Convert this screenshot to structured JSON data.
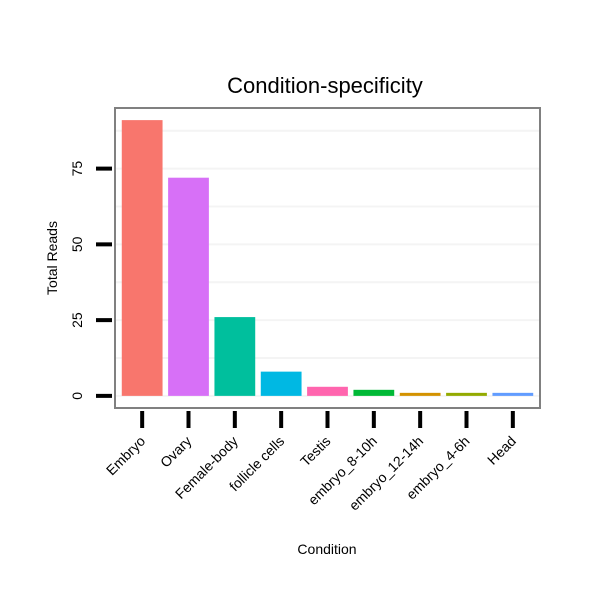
{
  "chart_data": {
    "type": "bar",
    "title": "Condition-specificity",
    "xlabel": "Condition",
    "ylabel": "Total Reads",
    "categories": [
      "Embryo",
      "Ovary",
      "Female-body",
      "follicle cells",
      "Testis",
      "embryo_8-10h",
      "embryo_12-14h",
      "embryo_4-6h",
      "Head"
    ],
    "values": [
      91,
      72,
      26,
      8,
      3,
      2,
      1,
      1,
      1
    ],
    "ylim": [
      -4,
      95
    ],
    "yticks": [
      0,
      25,
      50,
      75
    ],
    "grid": true,
    "legend": "none",
    "colors": [
      "#F8766D",
      "#D770F7",
      "#00BF9D",
      "#00B8E3",
      "#FF65AE",
      "#00B936",
      "#D39200",
      "#93AA00",
      "#619CFF"
    ]
  },
  "style": {
    "panel_border": "#808080",
    "grid_color": "#F4F4F4",
    "tick_color": "#000000"
  }
}
